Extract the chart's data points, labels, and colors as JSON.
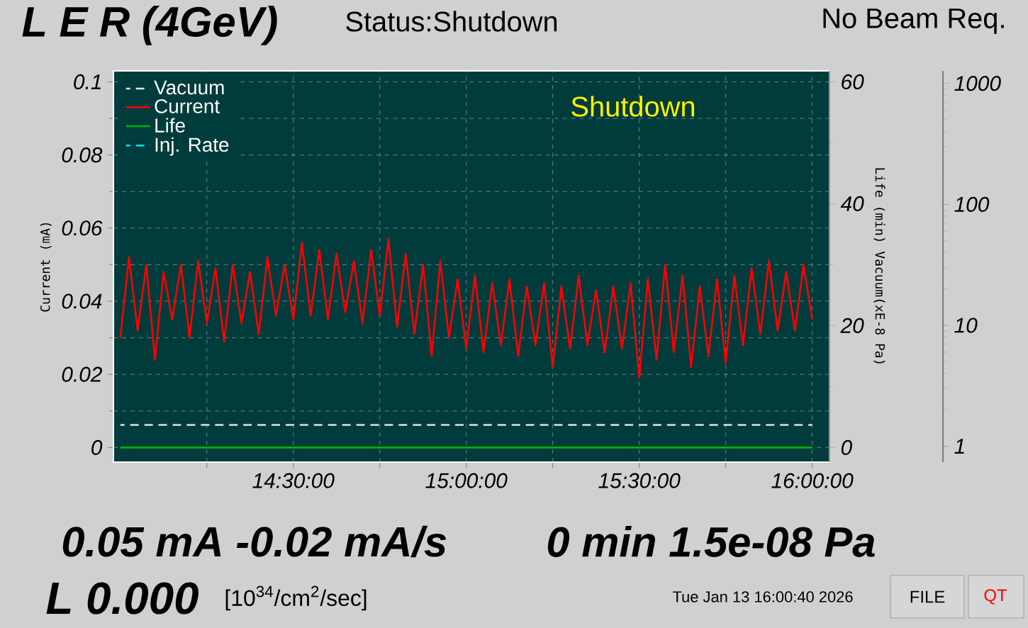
{
  "chart_data": {
    "type": "line",
    "title": "L E R (4GeV)",
    "subtitle": "Status:Shutdown",
    "ylabel": "Current (mA)",
    "y2label": "Life (min) Vacuum(xE-8 Pa)",
    "annotations": [
      "No Beam Req.",
      "Shutdown",
      "0.05 mA  -0.02 mA/s",
      "0 min 1.5e-08 Pa",
      "L 0.000",
      "[10$^{34}$/cm$^{2}$/sec]",
      "Tue Jan 13 16:00:40 2026",
      "FILE",
      "QT"
    ],
    "xlim": [
      13.98,
      16.05
    ],
    "xticks": [
      {
        "value": 14.25,
        "label": null
      },
      {
        "value": 14.5,
        "label": "14:30:00"
      },
      {
        "value": 14.75,
        "label": null
      },
      {
        "value": 15,
        "label": "15:00:00"
      },
      {
        "value": 15.25,
        "label": null
      },
      {
        "value": 15.5,
        "label": "15:30:00"
      },
      {
        "value": 15.75,
        "label": null
      },
      {
        "value": 16,
        "label": "16:00:00"
      }
    ],
    "ylim": [
      -0.004,
      0.103
    ],
    "yticks": [
      0,
      0.02,
      0.04,
      0.06,
      0.08,
      0.1
    ],
    "y2lim": [
      -2.4,
      61.8
    ],
    "y2ticks": [
      0,
      20,
      40,
      60
    ],
    "y3lim": [
      0.74,
      1270
    ],
    "y3ticks": [
      1,
      10,
      100,
      1000
    ],
    "grid": true,
    "legend": "top left",
    "log": "y3",
    "series": [
      {
        "name": "Vacuum",
        "color": "#e0e0e0",
        "line_style": "dashed",
        "axis": "y2",
        "x": [
          14.0,
          16.0
        ],
        "values": [
          3.7,
          3.7
        ]
      },
      {
        "name": "Current",
        "color": "#ff0000",
        "line_style": "solid",
        "axis": "y",
        "x": [
          14.0,
          14.025,
          14.05,
          14.075,
          14.1,
          14.125,
          14.15,
          14.175,
          14.2,
          14.225,
          14.25,
          14.275,
          14.3,
          14.325,
          14.35,
          14.375,
          14.4,
          14.425,
          14.45,
          14.475,
          14.5,
          14.525,
          14.55,
          14.575,
          14.6,
          14.625,
          14.65,
          14.675,
          14.7,
          14.725,
          14.75,
          14.775,
          14.8,
          14.825,
          14.85,
          14.875,
          14.9,
          14.925,
          14.95,
          14.975,
          15.0,
          15.025,
          15.05,
          15.075,
          15.1,
          15.125,
          15.15,
          15.175,
          15.2,
          15.225,
          15.25,
          15.275,
          15.3,
          15.325,
          15.35,
          15.375,
          15.4,
          15.425,
          15.45,
          15.475,
          15.5,
          15.525,
          15.55,
          15.575,
          15.6,
          15.625,
          15.65,
          15.675,
          15.7,
          15.725,
          15.75,
          15.775,
          15.8,
          15.825,
          15.85,
          15.875,
          15.9,
          15.925,
          15.95,
          15.975,
          16.0
        ],
        "values": [
          0.03,
          0.052,
          0.032,
          0.05,
          0.024,
          0.048,
          0.035,
          0.05,
          0.03,
          0.051,
          0.034,
          0.049,
          0.029,
          0.05,
          0.034,
          0.048,
          0.031,
          0.052,
          0.036,
          0.05,
          0.035,
          0.056,
          0.036,
          0.054,
          0.035,
          0.053,
          0.037,
          0.051,
          0.034,
          0.054,
          0.036,
          0.057,
          0.033,
          0.053,
          0.031,
          0.05,
          0.025,
          0.051,
          0.03,
          0.046,
          0.027,
          0.047,
          0.026,
          0.045,
          0.028,
          0.046,
          0.025,
          0.044,
          0.028,
          0.045,
          0.022,
          0.044,
          0.027,
          0.047,
          0.028,
          0.043,
          0.026,
          0.044,
          0.027,
          0.045,
          0.019,
          0.046,
          0.024,
          0.05,
          0.026,
          0.047,
          0.022,
          0.044,
          0.025,
          0.046,
          0.023,
          0.047,
          0.028,
          0.049,
          0.031,
          0.051,
          0.032,
          0.048,
          0.032,
          0.05,
          0.035
        ]
      },
      {
        "name": "Life",
        "color": "#00b000",
        "line_style": "solid",
        "axis": "y2",
        "x": [
          14.0,
          16.0
        ],
        "values": [
          0,
          0
        ]
      },
      {
        "name": "Inj. Rate",
        "color": "#00e0ff",
        "line_style": "dashed",
        "axis": "y3",
        "values": [
          null
        ]
      }
    ]
  }
}
